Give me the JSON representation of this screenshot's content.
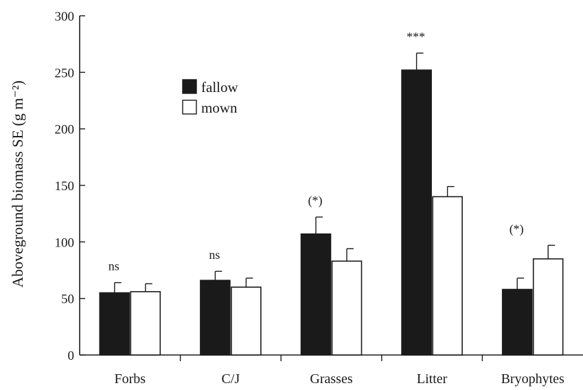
{
  "chart_data": {
    "type": "bar",
    "ylabel": "Aboveground biomass SE (g m⁻²)",
    "xlabel": "",
    "ylim": [
      0,
      300
    ],
    "yticks": [
      0,
      50,
      100,
      150,
      200,
      250,
      300
    ],
    "categories": [
      "Forbs",
      "C/J",
      "Grasses",
      "Litter",
      "Bryophytes"
    ],
    "series": [
      {
        "name": "fallow",
        "values": [
          55,
          66,
          107,
          252,
          58
        ],
        "errors": [
          9,
          8,
          15,
          15,
          10
        ],
        "color": "#1a1a1a"
      },
      {
        "name": "mown",
        "values": [
          56,
          60,
          83,
          140,
          85
        ],
        "errors": [
          7,
          8,
          11,
          9,
          12
        ],
        "color": "#ffffff"
      }
    ],
    "annotations": [
      "ns",
      "ns",
      "(*)",
      "***",
      "(*)"
    ],
    "legend": "upper-left",
    "grid": false
  }
}
